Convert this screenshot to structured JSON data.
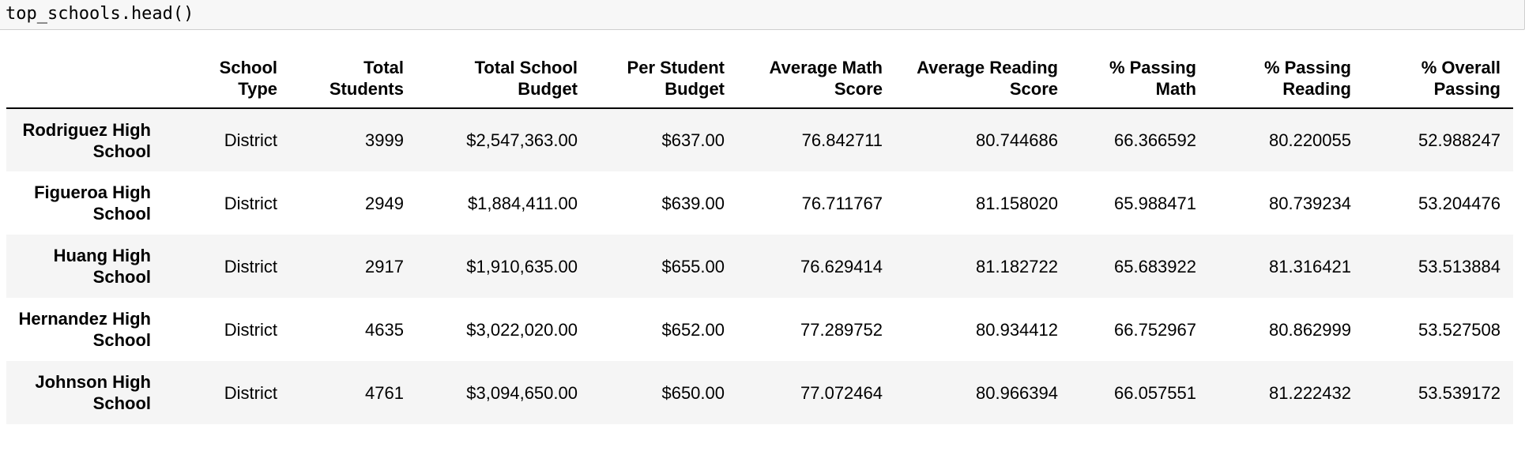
{
  "input_cell": {
    "code": "top_schools.head()"
  },
  "dataframe": {
    "index_header": "",
    "columns": [
      {
        "line1": "School",
        "line2": "Type"
      },
      {
        "line1": "Total",
        "line2": "Students"
      },
      {
        "line1": "Total School",
        "line2": "Budget"
      },
      {
        "line1": "Per Student",
        "line2": "Budget"
      },
      {
        "line1": "Average Math",
        "line2": "Score"
      },
      {
        "line1": "Average Reading",
        "line2": "Score"
      },
      {
        "line1": "% Passing",
        "line2": "Math"
      },
      {
        "line1": "% Passing",
        "line2": "Reading"
      },
      {
        "line1": "% Overall",
        "line2": "Passing"
      }
    ],
    "rows": [
      {
        "index_line1": "Rodriguez High",
        "index_line2": "School",
        "cells": [
          "District",
          "3999",
          "$2,547,363.00",
          "$637.00",
          "76.842711",
          "80.744686",
          "66.366592",
          "80.220055",
          "52.988247"
        ]
      },
      {
        "index_line1": "Figueroa High",
        "index_line2": "School",
        "cells": [
          "District",
          "2949",
          "$1,884,411.00",
          "$639.00",
          "76.711767",
          "81.158020",
          "65.988471",
          "80.739234",
          "53.204476"
        ]
      },
      {
        "index_line1": "Huang High",
        "index_line2": "School",
        "cells": [
          "District",
          "2917",
          "$1,910,635.00",
          "$655.00",
          "76.629414",
          "81.182722",
          "65.683922",
          "81.316421",
          "53.513884"
        ]
      },
      {
        "index_line1": "Hernandez High",
        "index_line2": "School",
        "cells": [
          "District",
          "4635",
          "$3,022,020.00",
          "$652.00",
          "77.289752",
          "80.934412",
          "66.752967",
          "80.862999",
          "53.527508"
        ]
      },
      {
        "index_line1": "Johnson High",
        "index_line2": "School",
        "cells": [
          "District",
          "4761",
          "$3,094,650.00",
          "$650.00",
          "77.072464",
          "80.966394",
          "66.057551",
          "81.222432",
          "53.539172"
        ]
      }
    ]
  }
}
